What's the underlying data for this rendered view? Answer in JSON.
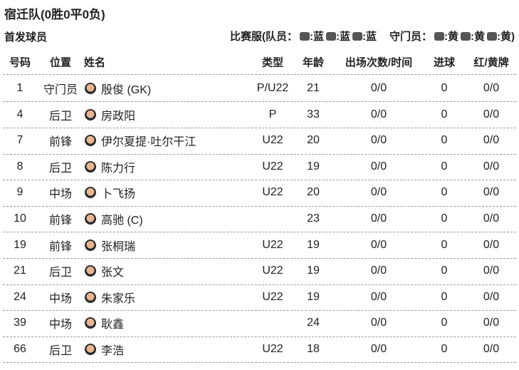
{
  "header": {
    "title": "宿迁队(0胜0平0负)",
    "section": "首发球员",
    "kit": {
      "label": "比赛服(队员：",
      "player": [
        ":蓝",
        ":蓝",
        ":蓝"
      ],
      "gk_label": "守门员：",
      "gk": [
        ":黄",
        ":黄",
        ":黄)"
      ]
    }
  },
  "table": {
    "columns": [
      "号码",
      "位置",
      "姓名",
      "类型",
      "年龄",
      "出场次数/时间",
      "进球",
      "红/黄牌"
    ],
    "rows": [
      [
        1,
        "守门员",
        "殷俊 (GK)",
        "P/U22",
        21,
        "0/0",
        0,
        "0/0"
      ],
      [
        4,
        "后卫",
        "房政阳",
        "P",
        33,
        "0/0",
        0,
        "0/0"
      ],
      [
        7,
        "前锋",
        "伊尔夏提·吐尔干江",
        "U22",
        20,
        "0/0",
        0,
        "0/0"
      ],
      [
        8,
        "后卫",
        "陈力行",
        "U22",
        19,
        "0/0",
        0,
        "0/0"
      ],
      [
        9,
        "中场",
        "卜飞扬",
        "U22",
        20,
        "0/0",
        0,
        "0/0"
      ],
      [
        10,
        "前锋",
        "高驰 (C)",
        null,
        23,
        "0/0",
        0,
        "0/0"
      ],
      [
        19,
        "前锋",
        "张桐瑞",
        "U22",
        19,
        "0/0",
        0,
        "0/0"
      ],
      [
        21,
        "后卫",
        "张文",
        "U22",
        19,
        "0/0",
        0,
        "0/0"
      ],
      [
        24,
        "中场",
        "朱家乐",
        "U22",
        19,
        "0/0",
        0,
        "0/0"
      ],
      [
        39,
        "中场",
        "耿鑫",
        null,
        24,
        "0/0",
        0,
        "0/0"
      ],
      [
        66,
        "后卫",
        "李浩",
        "U22",
        18,
        "0/0",
        0,
        "0/0"
      ]
    ]
  }
}
